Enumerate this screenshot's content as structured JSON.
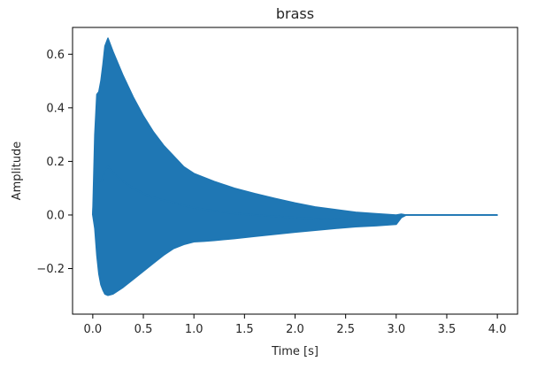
{
  "chart_data": {
    "type": "area",
    "title": "brass",
    "xlabel": "Time [s]",
    "ylabel": "Amplitude",
    "xlim": [
      -0.2,
      4.2
    ],
    "ylim": [
      -0.37,
      0.7
    ],
    "grid": false,
    "series": [
      {
        "color": "#1f77b4",
        "x": [
          0.0,
          0.02,
          0.04,
          0.06,
          0.08,
          0.1,
          0.12,
          0.15,
          0.2,
          0.3,
          0.4,
          0.5,
          0.6,
          0.7,
          0.8,
          0.9,
          1.0,
          1.1,
          1.2,
          1.4,
          1.6,
          1.8,
          2.0,
          2.2,
          2.4,
          2.6,
          2.8,
          3.0,
          3.05,
          3.1,
          3.5,
          4.0
        ],
        "upper": [
          0.0,
          0.3,
          0.45,
          0.46,
          0.5,
          0.56,
          0.63,
          0.66,
          0.61,
          0.52,
          0.44,
          0.37,
          0.31,
          0.26,
          0.22,
          0.18,
          0.155,
          0.14,
          0.125,
          0.1,
          0.08,
          0.062,
          0.045,
          0.03,
          0.02,
          0.01,
          0.005,
          0.0,
          0.003,
          0.0,
          0.0,
          0.0
        ],
        "lower": [
          0.0,
          -0.05,
          -0.15,
          -0.22,
          -0.26,
          -0.28,
          -0.295,
          -0.3,
          -0.295,
          -0.27,
          -0.24,
          -0.21,
          -0.18,
          -0.15,
          -0.125,
          -0.11,
          -0.1,
          -0.098,
          -0.095,
          -0.088,
          -0.08,
          -0.072,
          -0.064,
          -0.057,
          -0.05,
          -0.044,
          -0.04,
          -0.035,
          -0.01,
          0.0,
          0.0,
          0.0
        ]
      }
    ],
    "xticks": [
      {
        "value": 0.0,
        "label": "0.0"
      },
      {
        "value": 0.5,
        "label": "0.5"
      },
      {
        "value": 1.0,
        "label": "1.0"
      },
      {
        "value": 1.5,
        "label": "1.5"
      },
      {
        "value": 2.0,
        "label": "2.0"
      },
      {
        "value": 2.5,
        "label": "2.5"
      },
      {
        "value": 3.0,
        "label": "3.0"
      },
      {
        "value": 3.5,
        "label": "3.5"
      },
      {
        "value": 4.0,
        "label": "4.0"
      }
    ],
    "yticks": [
      {
        "value": -0.2,
        "label": "−0.2"
      },
      {
        "value": 0.0,
        "label": "0.0"
      },
      {
        "value": 0.2,
        "label": "0.2"
      },
      {
        "value": 0.4,
        "label": "0.4"
      },
      {
        "value": 0.6,
        "label": "0.6"
      }
    ]
  }
}
